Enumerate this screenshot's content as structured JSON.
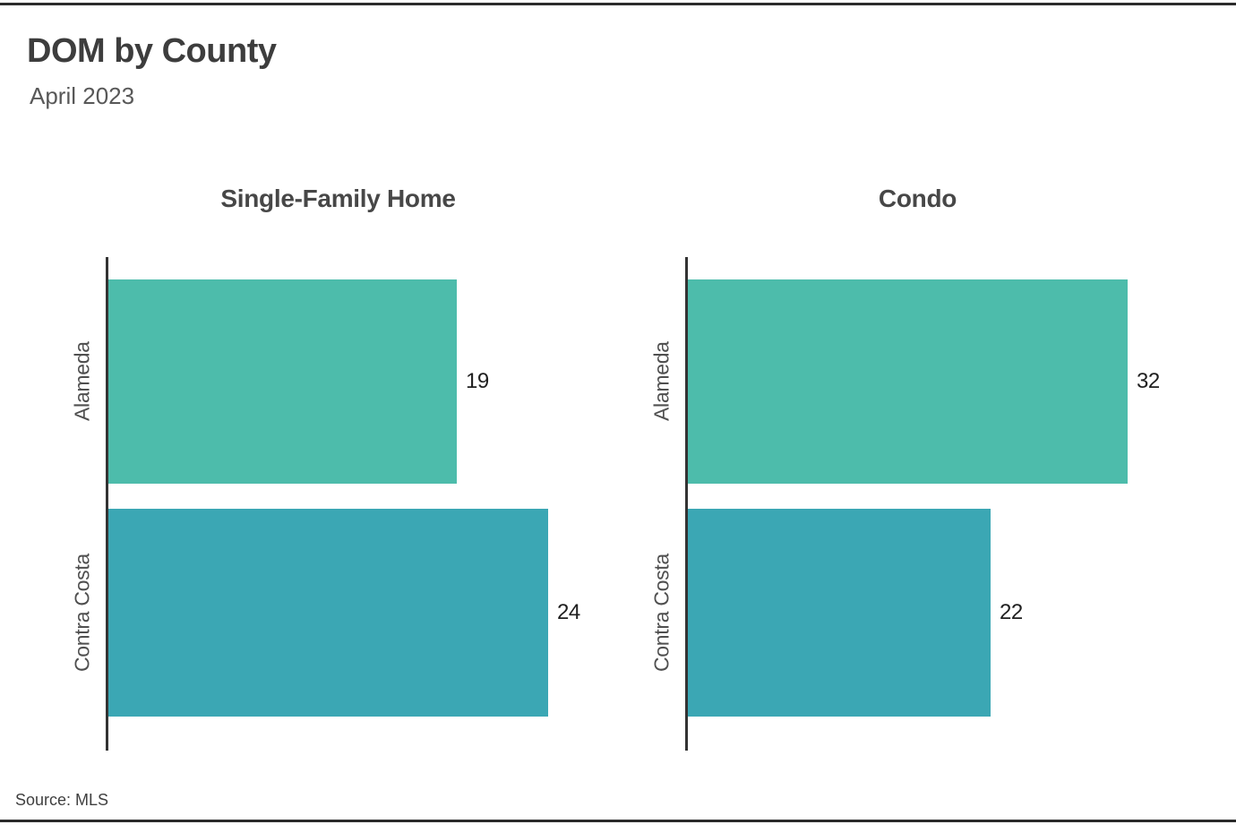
{
  "page": {
    "title": "DOM by County",
    "subtitle": "April 2023",
    "source": "Source: MLS"
  },
  "colors": {
    "bar_alameda": "#4dbcab",
    "bar_contra_costa": "#3ba7b4",
    "axis_line": "#333333",
    "border_rule": "#2b2b2b",
    "title_text": "#3d3d3d",
    "subtitle_text": "#585858",
    "value_text": "#1f1f1f",
    "category_text": "#4f4f4f"
  },
  "chart_data": [
    {
      "type": "bar",
      "orientation": "horizontal",
      "title": "Single-Family Home",
      "categories": [
        "Alameda",
        "Contra Costa"
      ],
      "values": [
        19,
        24
      ],
      "bar_colors": [
        "#4dbcab",
        "#3ba7b4"
      ],
      "xlim": [
        0,
        25.2
      ],
      "grid": false,
      "legend": "none",
      "value_labels": [
        "19",
        "24"
      ]
    },
    {
      "type": "bar",
      "orientation": "horizontal",
      "title": "Condo",
      "categories": [
        "Alameda",
        "Contra Costa"
      ],
      "values": [
        32,
        22
      ],
      "bar_colors": [
        "#4dbcab",
        "#3ba7b4"
      ],
      "xlim": [
        0,
        33.6
      ],
      "grid": false,
      "legend": "none",
      "value_labels": [
        "32",
        "22"
      ]
    }
  ]
}
